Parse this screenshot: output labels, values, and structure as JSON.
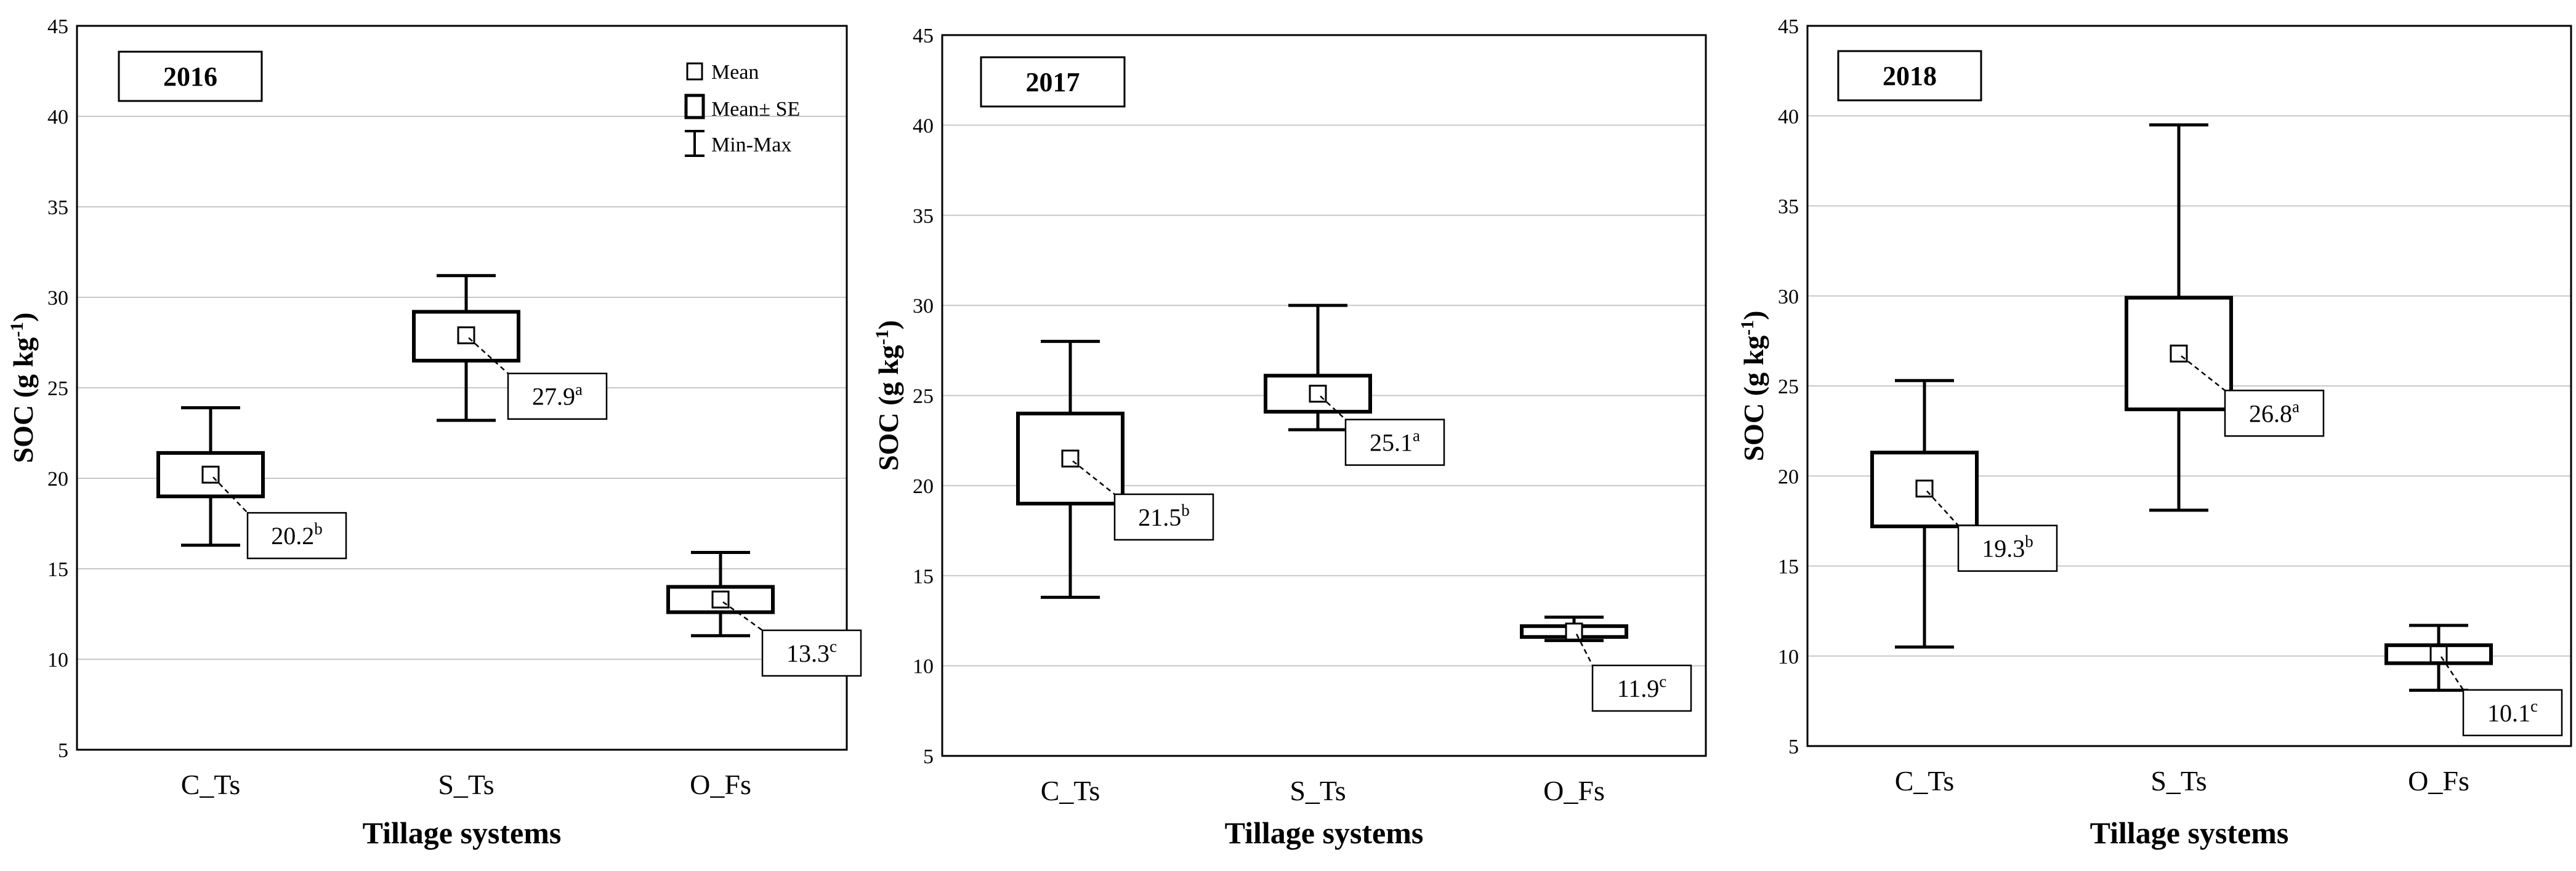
{
  "chart_data": [
    {
      "type": "box",
      "title": "2016",
      "xlabel": "Tillage systems",
      "ylabel": "SOC (g kg-1)",
      "ylim": [
        5,
        45
      ],
      "yticks": [
        5,
        10,
        15,
        20,
        25,
        30,
        35,
        40,
        45
      ],
      "categories": [
        "C_Ts",
        "S_Ts",
        "O_Fs"
      ],
      "series": [
        {
          "category": "C_Ts",
          "min": 16.3,
          "se_low": 19.0,
          "mean": 20.2,
          "se_high": 21.4,
          "max": 23.9,
          "label": "20.2",
          "group": "b"
        },
        {
          "category": "S_Ts",
          "min": 23.2,
          "se_low": 26.5,
          "mean": 27.9,
          "se_high": 29.2,
          "max": 31.2,
          "label": "27.9",
          "group": "a"
        },
        {
          "category": "O_Fs",
          "min": 11.3,
          "se_low": 12.6,
          "mean": 13.3,
          "se_high": 14.0,
          "max": 15.9,
          "label": "13.3",
          "group": "c"
        }
      ],
      "legend": {
        "mean": "Mean",
        "se": "Mean± SE",
        "range": "Min-Max"
      }
    },
    {
      "type": "box",
      "title": "2017",
      "xlabel": "Tillage systems",
      "ylabel": "SOC (g kg-1)",
      "ylim": [
        5,
        45
      ],
      "yticks": [
        5,
        10,
        15,
        20,
        25,
        30,
        35,
        40,
        45
      ],
      "categories": [
        "C_Ts",
        "S_Ts",
        "O_Fs"
      ],
      "series": [
        {
          "category": "C_Ts",
          "min": 13.8,
          "se_low": 19.0,
          "mean": 21.5,
          "se_high": 24.0,
          "max": 28.0,
          "label": "21.5",
          "group": "b"
        },
        {
          "category": "S_Ts",
          "min": 23.1,
          "se_low": 24.1,
          "mean": 25.1,
          "se_high": 26.1,
          "max": 30.0,
          "label": "25.1",
          "group": "a"
        },
        {
          "category": "O_Fs",
          "min": 11.4,
          "se_low": 11.6,
          "mean": 11.9,
          "se_high": 12.2,
          "max": 12.7,
          "label": "11.9",
          "group": "c"
        }
      ]
    },
    {
      "type": "box",
      "title": "2018",
      "xlabel": "Tillage systems",
      "ylabel": "SOC (g kg-1)",
      "ylim": [
        5,
        45
      ],
      "yticks": [
        5,
        10,
        15,
        20,
        25,
        30,
        35,
        40,
        45
      ],
      "categories": [
        "C_Ts",
        "S_Ts",
        "O_Fs"
      ],
      "series": [
        {
          "category": "C_Ts",
          "min": 10.5,
          "se_low": 17.2,
          "mean": 19.3,
          "se_high": 21.3,
          "max": 25.3,
          "label": "19.3",
          "group": "b"
        },
        {
          "category": "S_Ts",
          "min": 18.1,
          "se_low": 23.7,
          "mean": 26.8,
          "se_high": 29.9,
          "max": 39.5,
          "label": "26.8",
          "group": "a"
        },
        {
          "category": "O_Fs",
          "min": 8.1,
          "se_low": 9.6,
          "mean": 10.1,
          "se_high": 10.6,
          "max": 11.7,
          "label": "10.1",
          "group": "c"
        }
      ]
    }
  ],
  "ylabel_parts": {
    "main": "SOC (g kg",
    "sup": "-1",
    "close": ")"
  }
}
